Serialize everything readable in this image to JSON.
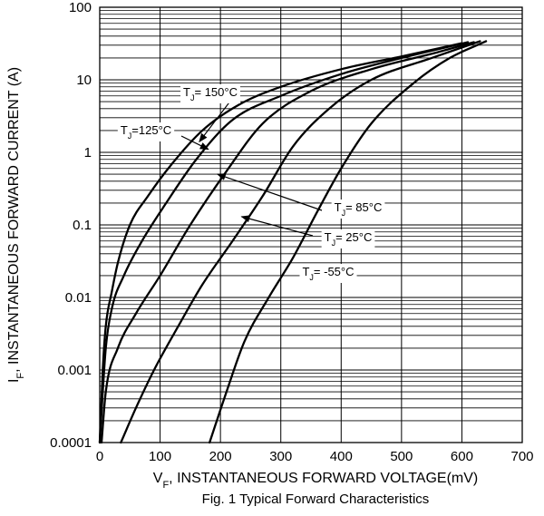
{
  "chart_data": {
    "type": "line",
    "title": "Fig. 1 Typical Forward Characteristics",
    "xlabel": "V_F, INSTANTANEOUS FORWARD VOLTAGE(mV)",
    "ylabel": "I_F, INSTANTANEOUS FORWARD CURRENT (A)",
    "x_scale": "linear",
    "y_scale": "log",
    "xlim": [
      0,
      700
    ],
    "ylim": [
      0.0001,
      100
    ],
    "grid": true,
    "x_ticks": [
      0,
      100,
      200,
      300,
      400,
      500,
      600,
      700
    ],
    "x_tick_labels": [
      "0",
      "100",
      "200",
      "300",
      "400",
      "500",
      "600",
      "700"
    ],
    "y_ticks": [
      0.0001,
      0.001,
      0.01,
      0.1,
      1,
      10,
      100
    ],
    "y_tick_labels": [
      "0.0001",
      "0.001",
      "0.01",
      "0.1",
      "1",
      "10",
      "100"
    ],
    "series": [
      {
        "name": "T_J= 150°C",
        "x": [
          0,
          5,
          10,
          20,
          30,
          50,
          80,
          120,
          170,
          230,
          300,
          400,
          500,
          600
        ],
        "y": [
          0.0001,
          0.001,
          0.004,
          0.012,
          0.03,
          0.1,
          0.25,
          0.7,
          2,
          4.5,
          8,
          14,
          21,
          32
        ]
      },
      {
        "name": "T_J=125°C",
        "x": [
          0,
          5,
          10,
          20,
          40,
          70,
          110,
          160,
          220,
          300,
          400,
          500,
          610
        ],
        "y": [
          0.0001,
          0.0005,
          0.002,
          0.007,
          0.02,
          0.06,
          0.2,
          0.8,
          2.8,
          6,
          12,
          20,
          33
        ]
      },
      {
        "name": "T_J= 85°C",
        "x": [
          3,
          10,
          30,
          60,
          100,
          150,
          210,
          270,
          350,
          450,
          560,
          620
        ],
        "y": [
          0.0001,
          0.0005,
          0.002,
          0.006,
          0.02,
          0.1,
          0.55,
          2.5,
          7,
          14,
          24,
          33
        ]
      },
      {
        "name": "T_J= 25°C",
        "x": [
          35,
          60,
          90,
          130,
          170,
          220,
          270,
          320,
          380,
          450,
          550,
          630
        ],
        "y": [
          0.0001,
          0.0003,
          0.001,
          0.004,
          0.015,
          0.06,
          0.25,
          1.2,
          4,
          10,
          20,
          34
        ]
      },
      {
        "name": "T_J= -55°C",
        "x": [
          182,
          210,
          240,
          280,
          320,
          360,
          400,
          450,
          520,
          580,
          640
        ],
        "y": [
          0.0001,
          0.0005,
          0.0025,
          0.01,
          0.035,
          0.15,
          0.6,
          2.5,
          9,
          20,
          34
        ]
      }
    ],
    "annotations": [
      {
        "text": "T_J= 150°C",
        "target_x": 165,
        "target_y": 1.4
      },
      {
        "text": "T_J=125°C",
        "target_x": 180,
        "target_y": 1.1
      },
      {
        "text": "T_J= 85°C",
        "target_x": 195,
        "target_y": 0.5
      },
      {
        "text": "T_J= 25°C",
        "target_x": 235,
        "target_y": 0.13
      },
      {
        "text": "T_J= -55°C",
        "target_x": null,
        "target_y": null
      }
    ],
    "colors": {
      "line": "#000000",
      "grid": "#000000",
      "background": "#ffffff"
    }
  }
}
